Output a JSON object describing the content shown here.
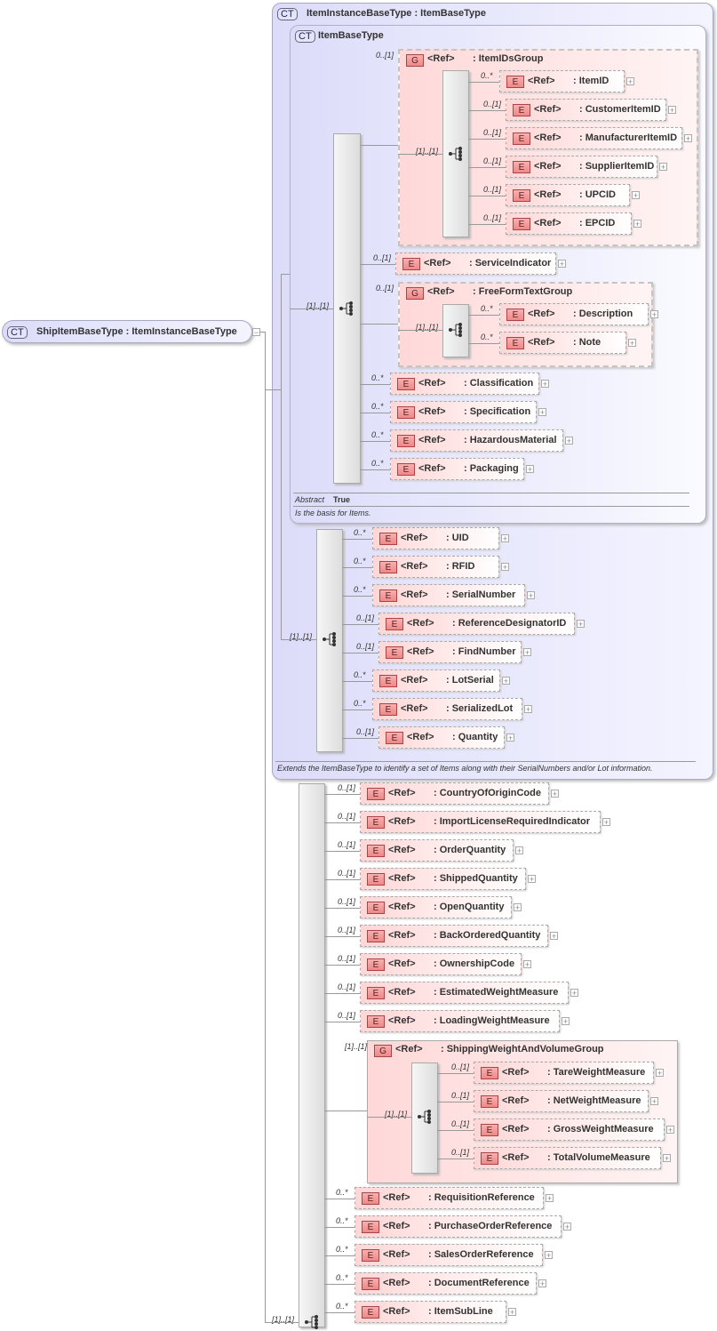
{
  "root": {
    "badge": "CT",
    "label": "ShipItemBaseType : ItemInstanceBaseType",
    "collapse_icon": "minus-icon"
  },
  "item_instance": {
    "badge": "CT",
    "label": "ItemInstanceBaseType : ItemBaseType",
    "documentation": "Extends the ItemBaseType to identify a set of Items along with their SerialNumbers and/or Lot information.",
    "sequence_occurrence": "[1]..[1]",
    "elements": [
      {
        "ref": "<Ref>",
        "name": ": UID",
        "occ": "0..*"
      },
      {
        "ref": "<Ref>",
        "name": ": RFID",
        "occ": "0..*"
      },
      {
        "ref": "<Ref>",
        "name": ": SerialNumber",
        "occ": "0..*"
      },
      {
        "ref": "<Ref>",
        "name": ": ReferenceDesignatorID",
        "occ": "0..[1]"
      },
      {
        "ref": "<Ref>",
        "name": ": FindNumber",
        "occ": "0..[1]"
      },
      {
        "ref": "<Ref>",
        "name": ": LotSerial",
        "occ": "0..*"
      },
      {
        "ref": "<Ref>",
        "name": ": SerializedLot",
        "occ": "0..*"
      },
      {
        "ref": "<Ref>",
        "name": ": Quantity",
        "occ": "0..[1]"
      }
    ]
  },
  "item_base": {
    "badge": "CT",
    "label": "ItemBaseType",
    "abstract_label": "Abstract",
    "abstract_value": "True",
    "documentation": "Is the basis for Items.",
    "sequence_occurrence": "[1]..[1]",
    "ids_group": {
      "badge": "G",
      "ref": "<Ref>",
      "name": ": ItemIDsGroup",
      "occ": "0..[1]",
      "sequence_occurrence": "[1]..[1]",
      "elements": [
        {
          "ref": "<Ref>",
          "name": ": ItemID",
          "occ": "0..*"
        },
        {
          "ref": "<Ref>",
          "name": ": CustomerItemID",
          "occ": "0..[1]"
        },
        {
          "ref": "<Ref>",
          "name": ": ManufacturerItemID",
          "occ": "0..[1]"
        },
        {
          "ref": "<Ref>",
          "name": ": SupplierItemID",
          "occ": "0..[1]"
        },
        {
          "ref": "<Ref>",
          "name": ": UPCID",
          "occ": "0..[1]"
        },
        {
          "ref": "<Ref>",
          "name": ": EPCID",
          "occ": "0..[1]"
        }
      ]
    },
    "service_indicator": {
      "ref": "<Ref>",
      "name": ": ServiceIndicator",
      "occ": "0..[1]"
    },
    "text_group": {
      "badge": "G",
      "ref": "<Ref>",
      "name": ": FreeFormTextGroup",
      "occ": "0..[1]",
      "sequence_occurrence": "[1]..[1]",
      "elements": [
        {
          "ref": "<Ref>",
          "name": ": Description",
          "occ": "0..*"
        },
        {
          "ref": "<Ref>",
          "name": ": Note",
          "occ": "0..*"
        }
      ]
    },
    "tail_elements": [
      {
        "ref": "<Ref>",
        "name": ": Classification",
        "occ": "0..*"
      },
      {
        "ref": "<Ref>",
        "name": ": Specification",
        "occ": "0..*"
      },
      {
        "ref": "<Ref>",
        "name": ": HazardousMaterial",
        "occ": "0..*"
      },
      {
        "ref": "<Ref>",
        "name": ": Packaging",
        "occ": "0..*"
      }
    ]
  },
  "ship_sequence": {
    "sequence_occurrence": "[1]..[1]",
    "head_elements": [
      {
        "ref": "<Ref>",
        "name": ": CountryOfOriginCode",
        "occ": "0..[1]"
      },
      {
        "ref": "<Ref>",
        "name": ": ImportLicenseRequiredIndicator",
        "occ": "0..[1]"
      },
      {
        "ref": "<Ref>",
        "name": ": OrderQuantity",
        "occ": "0..[1]"
      },
      {
        "ref": "<Ref>",
        "name": ": ShippedQuantity",
        "occ": "0..[1]"
      },
      {
        "ref": "<Ref>",
        "name": ": OpenQuantity",
        "occ": "0..[1]"
      },
      {
        "ref": "<Ref>",
        "name": ": BackOrderedQuantity",
        "occ": "0..[1]"
      },
      {
        "ref": "<Ref>",
        "name": ": OwnershipCode",
        "occ": "0..[1]"
      },
      {
        "ref": "<Ref>",
        "name": ": EstimatedWeightMeasure",
        "occ": "0..[1]"
      },
      {
        "ref": "<Ref>",
        "name": ": LoadingWeightMeasure",
        "occ": "0..[1]"
      }
    ],
    "weight_group": {
      "badge": "G",
      "ref": "<Ref>",
      "name": ": ShippingWeightAndVolumeGroup",
      "occ": "[1]..[1]",
      "sequence_occurrence": "[1]..[1]",
      "elements": [
        {
          "ref": "<Ref>",
          "name": ": TareWeightMeasure",
          "occ": "0..[1]"
        },
        {
          "ref": "<Ref>",
          "name": ": NetWeightMeasure",
          "occ": "0..[1]"
        },
        {
          "ref": "<Ref>",
          "name": ": GrossWeightMeasure",
          "occ": "0..[1]"
        },
        {
          "ref": "<Ref>",
          "name": ": TotalVolumeMeasure",
          "occ": "0..[1]"
        }
      ]
    },
    "tail_elements": [
      {
        "ref": "<Ref>",
        "name": ": RequisitionReference",
        "occ": "0..*"
      },
      {
        "ref": "<Ref>",
        "name": ": PurchaseOrderReference",
        "occ": "0..*"
      },
      {
        "ref": "<Ref>",
        "name": ": SalesOrderReference",
        "occ": "0..*"
      },
      {
        "ref": "<Ref>",
        "name": ": DocumentReference",
        "occ": "0..*"
      },
      {
        "ref": "<Ref>",
        "name": ": ItemSubLine",
        "occ": "0..*"
      }
    ]
  },
  "element_badge": "E",
  "expand_icon": "plus-icon",
  "sequence_icon": "sequence-icon"
}
